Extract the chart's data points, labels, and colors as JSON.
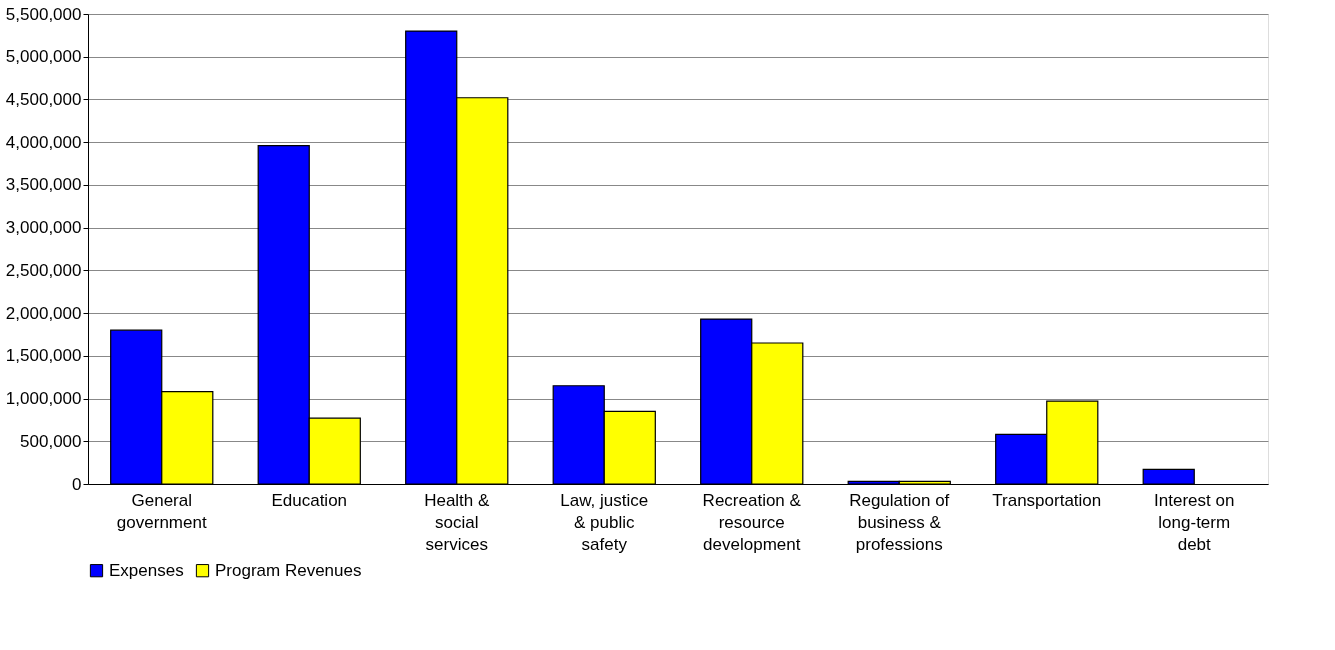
{
  "chart_data": {
    "type": "bar",
    "categories": [
      "General government",
      "Education",
      "Health & social services",
      "Law, justice & public safety",
      "Recreation & resource development",
      "Regulation of business & professions",
      "Transportation",
      "Interest on long-term debt"
    ],
    "series": [
      {
        "name": "Expenses",
        "color": "#0000ff",
        "values": [
          1800000,
          3960000,
          5300000,
          1150000,
          1930000,
          30000,
          580000,
          170000
        ]
      },
      {
        "name": "Program Revenues",
        "color": "#ffff00",
        "values": [
          1080000,
          770000,
          4520000,
          850000,
          1650000,
          30000,
          970000,
          null
        ]
      }
    ],
    "ylim": [
      0,
      5500000
    ],
    "yticks": [
      {
        "value": 0,
        "label": "0"
      },
      {
        "value": 500000,
        "label": "500,000"
      },
      {
        "value": 1000000,
        "label": "1,000,000"
      },
      {
        "value": 1500000,
        "label": "1,500,000"
      },
      {
        "value": 2000000,
        "label": "2,000,000"
      },
      {
        "value": 2500000,
        "label": "2,500,000"
      },
      {
        "value": 3000000,
        "label": "3,000,000"
      },
      {
        "value": 3500000,
        "label": "3,500,000"
      },
      {
        "value": 4000000,
        "label": "4,000,000"
      },
      {
        "value": 4500000,
        "label": "4,500,000"
      },
      {
        "value": 5000000,
        "label": "5,000,000"
      },
      {
        "value": 5500000,
        "label": "5,500,000"
      }
    ],
    "grid": "y",
    "legend": "bottom"
  }
}
